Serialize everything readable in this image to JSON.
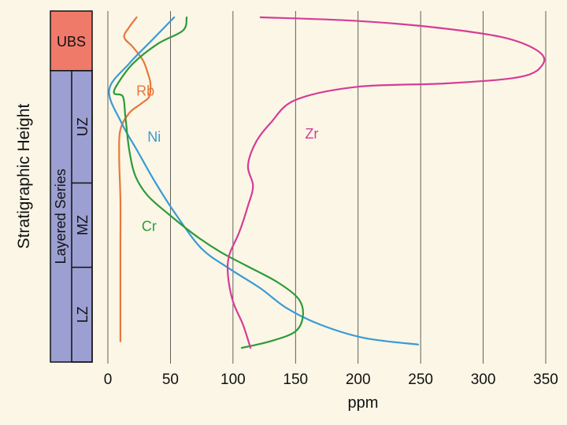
{
  "chart_data": {
    "type": "line",
    "xlabel": "ppm",
    "ylabel": "Stratigraphic Height",
    "xlim": [
      0,
      350
    ],
    "x_ticks": [
      0,
      50,
      100,
      150,
      200,
      250,
      300,
      350
    ],
    "grid": "vertical",
    "y_scale": "relative height, 0 = base (LZ), 100 = top (UBS)",
    "stratigraphy": {
      "ubs": {
        "label": "UBS",
        "from": 83,
        "to": 100,
        "color": "#f07a6a"
      },
      "layered_series": {
        "label": "Layered Series",
        "from": 0,
        "to": 83,
        "color": "#9b9fd1"
      },
      "zones": [
        {
          "label": "UZ",
          "from": 51,
          "to": 83
        },
        {
          "label": "MZ",
          "from": 27,
          "to": 51
        },
        {
          "label": "LZ",
          "from": 0,
          "to": 27
        }
      ]
    },
    "series": [
      {
        "name": "Rb",
        "color": "#e8783a",
        "points": [
          [
            23,
            100
          ],
          [
            17,
            97
          ],
          [
            13,
            94
          ],
          [
            20,
            91
          ],
          [
            28,
            87
          ],
          [
            32,
            83
          ],
          [
            34,
            80
          ],
          [
            33,
            76
          ],
          [
            27,
            74
          ],
          [
            17,
            71
          ],
          [
            10,
            66
          ],
          [
            9,
            58
          ],
          [
            10,
            45
          ],
          [
            10,
            30
          ],
          [
            10,
            15
          ],
          [
            10,
            2
          ]
        ]
      },
      {
        "name": "Ni",
        "color": "#3a9bd5",
        "points": [
          [
            53,
            100
          ],
          [
            35,
            93
          ],
          [
            17,
            86
          ],
          [
            1,
            78
          ],
          [
            11,
            68
          ],
          [
            23,
            60
          ],
          [
            38,
            50
          ],
          [
            55,
            40
          ],
          [
            75,
            30
          ],
          [
            97,
            24
          ],
          [
            122,
            18
          ],
          [
            143,
            12
          ],
          [
            170,
            7
          ],
          [
            205,
            3
          ],
          [
            248,
            1
          ]
        ]
      },
      {
        "name": "Cr",
        "color": "#2e9a3a",
        "points": [
          [
            63,
            100
          ],
          [
            60,
            96
          ],
          [
            40,
            92
          ],
          [
            20,
            86
          ],
          [
            8,
            80
          ],
          [
            5,
            77
          ],
          [
            12,
            76
          ],
          [
            14,
            70
          ],
          [
            17,
            60
          ],
          [
            22,
            52
          ],
          [
            32,
            46
          ],
          [
            50,
            40
          ],
          [
            70,
            34
          ],
          [
            90,
            29
          ],
          [
            110,
            25
          ],
          [
            135,
            20
          ],
          [
            152,
            15
          ],
          [
            156,
            10
          ],
          [
            150,
            5
          ],
          [
            130,
            2
          ],
          [
            107,
            0
          ]
        ]
      },
      {
        "name": "Zr",
        "color": "#d63c96",
        "points": [
          [
            122,
            100
          ],
          [
            195,
            99
          ],
          [
            260,
            97
          ],
          [
            315,
            94
          ],
          [
            343,
            90
          ],
          [
            348,
            86
          ],
          [
            330,
            82
          ],
          [
            270,
            80
          ],
          [
            200,
            79
          ],
          [
            150,
            75
          ],
          [
            130,
            68
          ],
          [
            118,
            62
          ],
          [
            112,
            55
          ],
          [
            116,
            49
          ],
          [
            112,
            43
          ],
          [
            105,
            35
          ],
          [
            97,
            28
          ],
          [
            96,
            22
          ],
          [
            100,
            14
          ],
          [
            108,
            7
          ],
          [
            114,
            0
          ]
        ]
      }
    ],
    "series_label_positions": {
      "Rb": [
        30,
        78
      ],
      "Ni": [
        37,
        64
      ],
      "Cr": [
        33,
        37
      ],
      "Zr": [
        163,
        65
      ]
    }
  }
}
